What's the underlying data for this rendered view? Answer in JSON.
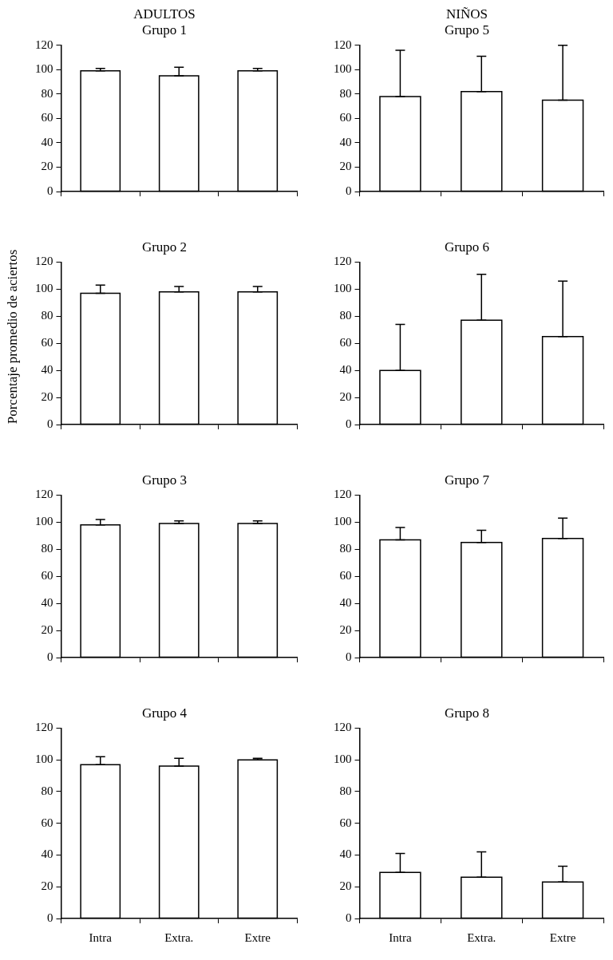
{
  "chart_data": [
    {
      "type": "bar",
      "title": "ADULTOS",
      "subtitle": "Grupo 1",
      "categories": [
        null,
        null,
        null
      ],
      "values": [
        99,
        95,
        99
      ],
      "errors": [
        [
          99,
          101
        ],
        [
          95,
          102
        ],
        [
          99,
          101
        ]
      ],
      "color": "#ffffff",
      "ylim": [
        0,
        120
      ],
      "yticks": [
        0,
        20,
        40,
        60,
        80,
        100,
        120
      ],
      "grid": false,
      "legend": false
    },
    {
      "type": "bar",
      "title": "Grupo 2",
      "ylabel": "Porcentaje promedio de aciertos",
      "categories": [
        null,
        null,
        null
      ],
      "values": [
        97,
        98,
        98
      ],
      "errors": [
        [
          97,
          103
        ],
        [
          98,
          102
        ],
        [
          98,
          102
        ]
      ],
      "color": "#ffffff",
      "ylim": [
        0,
        120
      ],
      "yticks": [
        0,
        20,
        40,
        60,
        80,
        100,
        120
      ],
      "grid": false,
      "legend": false
    },
    {
      "type": "bar",
      "title": "Grupo 3",
      "categories": [
        null,
        null,
        null
      ],
      "values": [
        98,
        99,
        99
      ],
      "errors": [
        [
          98,
          102
        ],
        [
          99,
          101
        ],
        [
          99,
          101
        ]
      ],
      "color": "#ffffff",
      "ylim": [
        0,
        120
      ],
      "yticks": [
        0,
        20,
        40,
        60,
        80,
        100,
        120
      ],
      "grid": false,
      "legend": false
    },
    {
      "type": "bar",
      "title": "Grupo 4",
      "categories": [
        "Intra",
        "Extra.",
        "Extre"
      ],
      "values": [
        97,
        96,
        100
      ],
      "errors": [
        [
          97,
          102
        ],
        [
          96,
          101
        ],
        [
          100,
          101
        ]
      ],
      "color": "#ffffff",
      "ylim": [
        0,
        120
      ],
      "yticks": [
        0,
        20,
        40,
        60,
        80,
        100,
        120
      ],
      "grid": false,
      "legend": false
    },
    {
      "type": "bar",
      "title": "NIÑOS",
      "subtitle": "Grupo 5",
      "categories": [
        null,
        null,
        null
      ],
      "values": [
        78,
        82,
        75
      ],
      "errors": [
        [
          78,
          116
        ],
        [
          82,
          111
        ],
        [
          75,
          120
        ]
      ],
      "color": "#ffffff",
      "ylim": [
        0,
        120
      ],
      "yticks": [
        0,
        20,
        40,
        60,
        80,
        100,
        120
      ],
      "grid": false,
      "legend": false
    },
    {
      "type": "bar",
      "title": "Grupo 6",
      "categories": [
        null,
        null,
        null
      ],
      "values": [
        40,
        77,
        65
      ],
      "errors": [
        [
          40,
          74
        ],
        [
          77,
          111
        ],
        [
          65,
          106
        ]
      ],
      "color": "#ffffff",
      "ylim": [
        0,
        120
      ],
      "yticks": [
        0,
        20,
        40,
        60,
        80,
        100,
        120
      ],
      "grid": false,
      "legend": false
    },
    {
      "type": "bar",
      "title": "Grupo 7",
      "categories": [
        null,
        null,
        null
      ],
      "values": [
        87,
        85,
        88
      ],
      "errors": [
        [
          87,
          96
        ],
        [
          85,
          94
        ],
        [
          88,
          103
        ]
      ],
      "color": "#ffffff",
      "ylim": [
        0,
        120
      ],
      "yticks": [
        0,
        20,
        40,
        60,
        80,
        100,
        120
      ],
      "grid": false,
      "legend": false
    },
    {
      "type": "bar",
      "title": "Grupo 8",
      "categories": [
        "Intra",
        "Extra.",
        "Extre"
      ],
      "values": [
        29,
        26,
        23
      ],
      "errors": [
        [
          29,
          41
        ],
        [
          26,
          42
        ],
        [
          23,
          33
        ]
      ],
      "color": "#ffffff",
      "ylim": [
        0,
        120
      ],
      "yticks": [
        0,
        20,
        40,
        60,
        80,
        100,
        120
      ],
      "grid": false,
      "legend": false
    }
  ]
}
